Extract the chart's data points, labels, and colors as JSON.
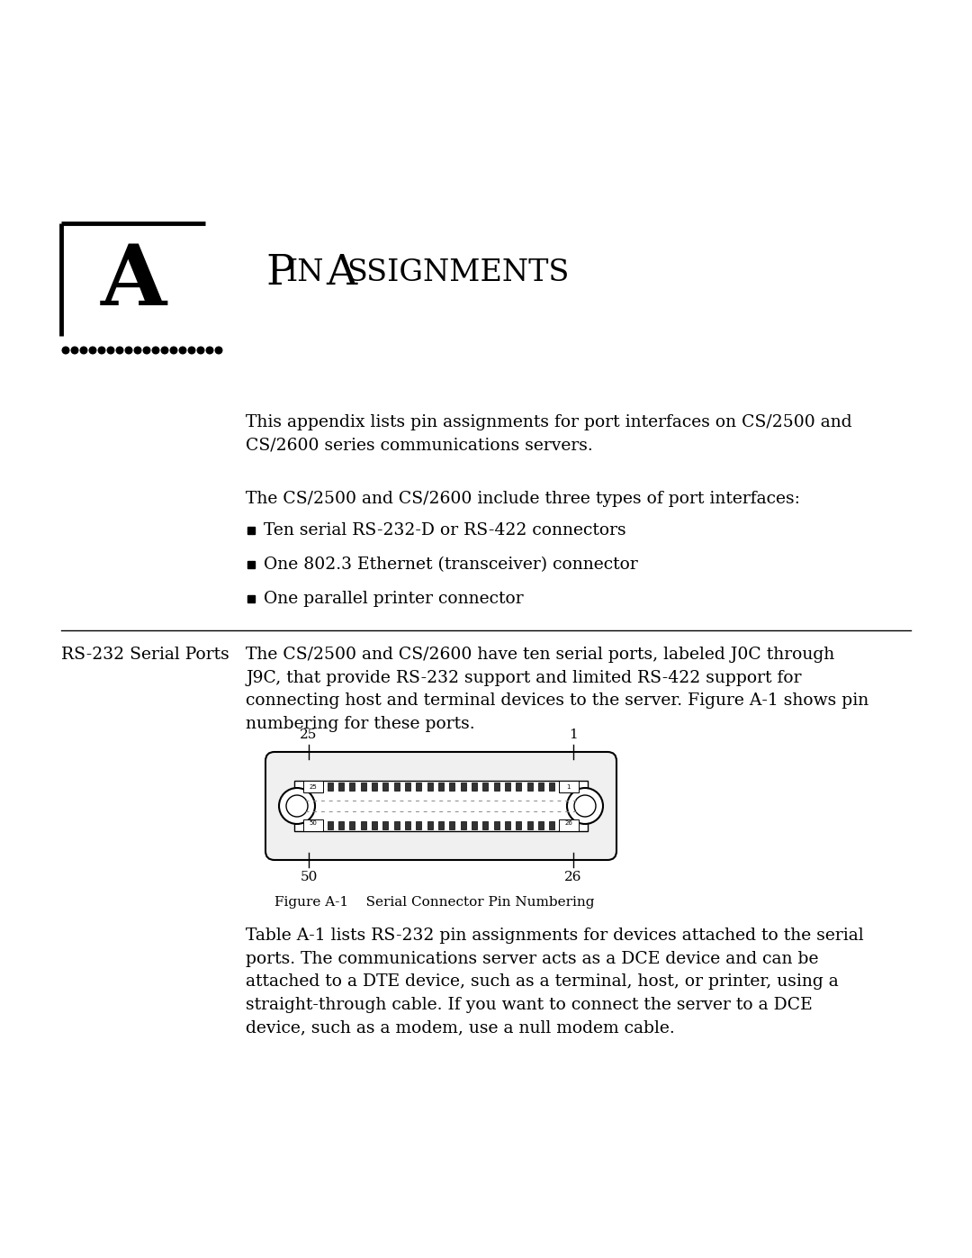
{
  "bg_color": "#ffffff",
  "title_chapter": "Pin Assignments",
  "chapter_letter": "A",
  "intro_text1": "This appendix lists pin assignments for port interfaces on CS/2500 and\nCS/2600 series communications servers.",
  "intro_text2": "The CS/2500 and CS/2600 include three types of port interfaces:",
  "bullet_items": [
    "Ten serial RS-232-D or RS-422 connectors",
    "One 802.3 Ethernet (transceiver) connector",
    "One parallel printer connector"
  ],
  "section_label": "RS-232 Serial Ports",
  "section_text": "The CS/2500 and CS/2600 have ten serial ports, labeled J0C through\nJ9C, that provide RS-232 support and limited RS-422 support for\nconnecting host and terminal devices to the server. Figure A-1 shows pin\nnumbering for these ports.",
  "figure_caption": "Figure A-1    Serial Connector Pin Numbering",
  "body_text": "Table A-1 lists RS-232 pin assignments for devices attached to the serial\nports. The communications server acts as a DCE device and can be\nattached to a DTE device, such as a terminal, host, or printer, using a\nstraight-through cable. If you want to connect the server to a DCE\ndevice, such as a modem, use a null modem cable.",
  "pin25_label": "25",
  "pin1_label": "1",
  "pin50_label": "50",
  "pin26_label": "26"
}
